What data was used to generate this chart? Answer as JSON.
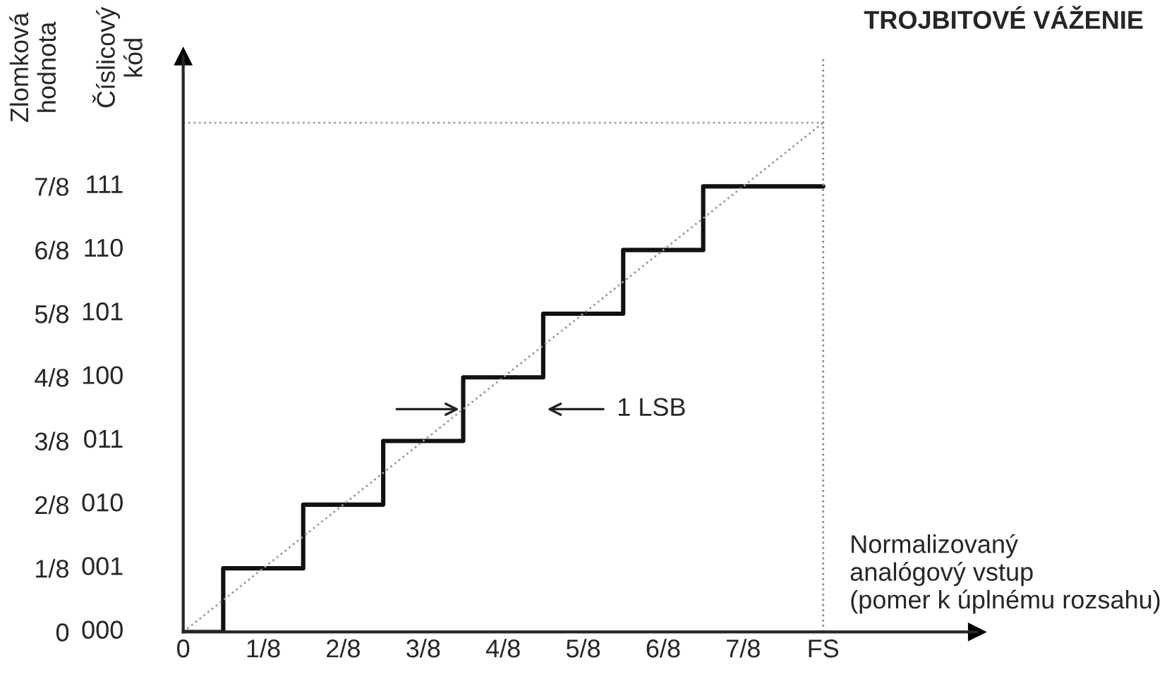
{
  "chart_data": {
    "type": "step",
    "title": "TROJBITOVÉ VÁŽENIE",
    "xlabel": "Normalizovaný\nanalógový vstup\n(pomer k úplnému rozsahu)",
    "ylabel": "Zlomková\nhodnota",
    "series": [
      {
        "color": "#111111",
        "line_style": "solid",
        "x": [
          0,
          0.0625,
          0.1875,
          0.3125,
          0.4375,
          0.5625,
          0.6875,
          0.8125,
          1
        ],
        "values": [
          0,
          0.125,
          0.25,
          0.375,
          0.5,
          0.625,
          0.75,
          0.875,
          0.875
        ]
      },
      {
        "type": "line",
        "color": "#999999",
        "line_style": "dotted",
        "x": [
          0,
          1
        ],
        "values": [
          0,
          1
        ]
      }
    ],
    "xlim": [
      0,
      1.24
    ],
    "ylim": [
      0,
      1.13
    ],
    "xticks": [
      0,
      {
        "value": 0.125,
        "label": "1/8"
      },
      {
        "value": 0.25,
        "label": "2/8"
      },
      {
        "value": 0.375,
        "label": "3/8"
      },
      {
        "value": 0.5,
        "label": "4/8"
      },
      {
        "value": 0.625,
        "label": "5/8"
      },
      {
        "value": 0.75,
        "label": "6/8"
      },
      {
        "value": 0.875,
        "label": "7/8"
      },
      {
        "value": 1,
        "label": "FS"
      }
    ],
    "yticks": [
      0,
      {
        "value": 0.125,
        "label": "1/8"
      },
      {
        "value": 0.25,
        "label": "2/8"
      },
      {
        "value": 0.375,
        "label": "3/8"
      },
      {
        "value": 0.5,
        "label": "4/8"
      },
      {
        "value": 0.625,
        "label": "5/8"
      },
      {
        "value": 0.75,
        "label": "6/8"
      },
      {
        "value": 0.875,
        "label": "7/8"
      }
    ],
    "ref_lines": [
      {
        "axis": "y",
        "value": 1,
        "color": "#a0a0a0",
        "line_style": "dotted"
      },
      {
        "axis": "x",
        "value": 1,
        "color": "#8c8c8c",
        "line_style": "dotted"
      }
    ],
    "annotations": [
      "Číslicový\nkód",
      "1 LSB",
      "000",
      "001",
      "010",
      "011",
      "100",
      "101",
      "110",
      "111"
    ],
    "grid": false,
    "legend": false
  }
}
